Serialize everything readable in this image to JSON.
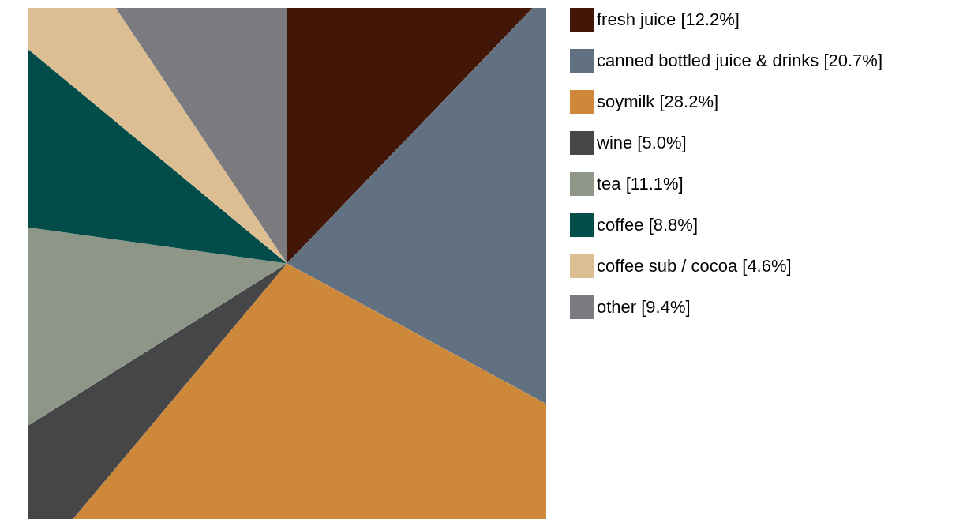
{
  "chart_data": {
    "type": "pie",
    "legend": "right",
    "categories": [
      "fresh juice [12.2%]",
      "canned bottled juice & drinks [20.7%]",
      "soymilk [28.2%]",
      "wine [5.0%]",
      "tea [11.1%]",
      "coffee [8.8%]",
      "coffee sub / cocoa [4.6%]",
      "other [9.4%]"
    ],
    "values": [
      12.2,
      20.7,
      28.2,
      5.0,
      11.1,
      8.8,
      4.6,
      9.4
    ],
    "colors": [
      "#431708",
      "#627182",
      "#cd8939",
      "#464648",
      "#8e9787",
      "#024c4a",
      "#dcbe92",
      "#7b7b7f"
    ]
  }
}
